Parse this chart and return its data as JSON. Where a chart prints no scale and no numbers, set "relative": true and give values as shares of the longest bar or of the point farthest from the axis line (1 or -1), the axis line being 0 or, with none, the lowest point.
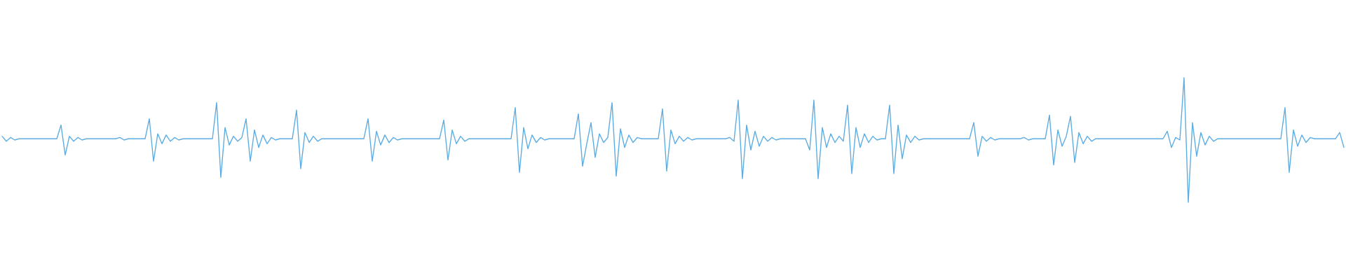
{
  "chart_data": {
    "type": "line",
    "relative": true,
    "color": "#5dade2",
    "categories": [
      null,
      null,
      null,
      null,
      null,
      null,
      null,
      null,
      null,
      null,
      null,
      null,
      null,
      null,
      null,
      null,
      null,
      null,
      null,
      null,
      null,
      null,
      null,
      null,
      null,
      null,
      null,
      null,
      null,
      null,
      null,
      null,
      null,
      null,
      null,
      null,
      null,
      null,
      null,
      null,
      null,
      null,
      null,
      null,
      null,
      null,
      null,
      null,
      null,
      null,
      null,
      null,
      null,
      null,
      null,
      null,
      null,
      null,
      null,
      null,
      null,
      null,
      null,
      null,
      null,
      null,
      null,
      null,
      null,
      null,
      null,
      null,
      null,
      null,
      null,
      null,
      null,
      null,
      null,
      null,
      null,
      null,
      null,
      null,
      null,
      null,
      null,
      null,
      null,
      null,
      null,
      null,
      null,
      null,
      null,
      null,
      null,
      null,
      null,
      null,
      null,
      null,
      null,
      null,
      null,
      null,
      null,
      null,
      null,
      null,
      null,
      null,
      null,
      null,
      null,
      null,
      null,
      null,
      null,
      null,
      null,
      null,
      null,
      null,
      null,
      null,
      null,
      null,
      null,
      null,
      null,
      null,
      null,
      null,
      null,
      null,
      null,
      null,
      null,
      null,
      null,
      null,
      null,
      null,
      null,
      null,
      null,
      null,
      null,
      null,
      null,
      null,
      null,
      null,
      null,
      null,
      null,
      null,
      null,
      null,
      null,
      null,
      null,
      null,
      null,
      null,
      null,
      null,
      null,
      null,
      null,
      null,
      null,
      null,
      null,
      null,
      null,
      null,
      null,
      null,
      null,
      null,
      null,
      null,
      null,
      null,
      null,
      null,
      null,
      null,
      null,
      null,
      null,
      null,
      null,
      null,
      null,
      null,
      null,
      null,
      null,
      null,
      null,
      null,
      null,
      null,
      null,
      null,
      null,
      null,
      null,
      null,
      null,
      null,
      null,
      null,
      null,
      null,
      null,
      null,
      null,
      null,
      null,
      null,
      null,
      null,
      null,
      null,
      null,
      null,
      null,
      null,
      null,
      null,
      null,
      null,
      null,
      null,
      null,
      null,
      null,
      null,
      null,
      null,
      null,
      null,
      null,
      null,
      null,
      null,
      null,
      null,
      null,
      null,
      null,
      null,
      null,
      null,
      null,
      null,
      null,
      null,
      null,
      null,
      null,
      null,
      null,
      null,
      null,
      null,
      null,
      null,
      null,
      null,
      null,
      null,
      null,
      null,
      null,
      null,
      null,
      null,
      null,
      null,
      null,
      null,
      null,
      null,
      null,
      null,
      null,
      null,
      null,
      null,
      null,
      null,
      null,
      null,
      null,
      null,
      null,
      null,
      null,
      null,
      null,
      null,
      null,
      null,
      null,
      null,
      null,
      null,
      null,
      null,
      null,
      null,
      null,
      null,
      null,
      null
    ],
    "values": [
      0.53,
      0.49,
      0.52,
      0.5,
      0.51,
      0.51,
      0.51,
      0.51,
      0.51,
      0.51,
      0.51,
      0.51,
      0.51,
      0.51,
      0.62,
      0.38,
      0.53,
      0.49,
      0.52,
      0.5,
      0.51,
      0.51,
      0.51,
      0.51,
      0.51,
      0.51,
      0.51,
      0.51,
      0.52,
      0.5,
      0.51,
      0.51,
      0.51,
      0.51,
      0.51,
      0.67,
      0.33,
      0.55,
      0.47,
      0.54,
      0.49,
      0.52,
      0.5,
      0.51,
      0.51,
      0.51,
      0.51,
      0.51,
      0.51,
      0.51,
      0.51,
      0.8,
      0.2,
      0.6,
      0.46,
      0.53,
      0.49,
      0.52,
      0.67,
      0.33,
      0.58,
      0.44,
      0.54,
      0.47,
      0.52,
      0.5,
      0.51,
      0.51,
      0.51,
      0.51,
      0.74,
      0.27,
      0.56,
      0.48,
      0.53,
      0.49,
      0.51,
      0.51,
      0.51,
      0.51,
      0.51,
      0.51,
      0.51,
      0.51,
      0.51,
      0.51,
      0.51,
      0.67,
      0.33,
      0.57,
      0.46,
      0.54,
      0.48,
      0.52,
      0.5,
      0.51,
      0.51,
      0.51,
      0.51,
      0.51,
      0.51,
      0.51,
      0.51,
      0.51,
      0.51,
      0.66,
      0.34,
      0.58,
      0.47,
      0.53,
      0.49,
      0.51,
      0.51,
      0.51,
      0.51,
      0.51,
      0.51,
      0.51,
      0.51,
      0.51,
      0.51,
      0.51,
      0.76,
      0.24,
      0.6,
      0.43,
      0.54,
      0.48,
      0.52,
      0.5,
      0.51,
      0.51,
      0.51,
      0.51,
      0.51,
      0.51,
      0.51,
      0.71,
      0.29,
      0.47,
      0.64,
      0.36,
      0.55,
      0.48,
      0.52,
      0.8,
      0.21,
      0.59,
      0.44,
      0.54,
      0.48,
      0.52,
      0.51,
      0.51,
      0.51,
      0.51,
      0.51,
      0.75,
      0.25,
      0.58,
      0.47,
      0.53,
      0.49,
      0.52,
      0.5,
      0.51,
      0.51,
      0.51,
      0.51,
      0.51,
      0.51,
      0.51,
      0.51,
      0.52,
      0.49,
      0.82,
      0.19,
      0.62,
      0.42,
      0.57,
      0.45,
      0.53,
      0.49,
      0.52,
      0.5,
      0.51,
      0.51,
      0.51,
      0.51,
      0.51,
      0.51,
      0.51,
      0.42,
      0.82,
      0.19,
      0.6,
      0.44,
      0.55,
      0.48,
      0.53,
      0.49,
      0.78,
      0.23,
      0.6,
      0.44,
      0.55,
      0.48,
      0.53,
      0.5,
      0.51,
      0.51,
      0.78,
      0.23,
      0.62,
      0.35,
      0.54,
      0.48,
      0.53,
      0.5,
      0.51,
      0.51,
      0.51,
      0.51,
      0.51,
      0.51,
      0.51,
      0.51,
      0.51,
      0.51,
      0.51,
      0.51,
      0.64,
      0.37,
      0.53,
      0.49,
      0.52,
      0.5,
      0.51,
      0.51,
      0.51,
      0.51,
      0.51,
      0.51,
      0.52,
      0.5,
      0.51,
      0.51,
      0.51,
      0.51,
      0.7,
      0.3,
      0.58,
      0.45,
      0.53,
      0.69,
      0.32,
      0.56,
      0.47,
      0.53,
      0.49,
      0.51,
      0.51,
      0.51,
      0.51,
      0.51,
      0.51,
      0.51,
      0.51,
      0.51,
      0.51,
      0.51,
      0.51,
      0.51,
      0.51,
      0.51,
      0.51,
      0.51,
      0.57,
      0.44,
      0.52,
      0.5,
      1.0,
      0.0,
      0.64,
      0.37,
      0.56,
      0.46,
      0.53,
      0.49,
      0.51,
      0.51,
      0.51,
      0.51,
      0.51,
      0.51,
      0.51,
      0.51,
      0.51,
      0.51,
      0.51,
      0.51,
      0.51,
      0.51,
      0.51,
      0.51,
      0.76,
      0.24,
      0.58,
      0.45,
      0.54,
      0.48,
      0.52,
      0.51,
      0.51,
      0.51,
      0.51,
      0.51,
      0.51,
      0.56,
      0.44
    ]
  }
}
